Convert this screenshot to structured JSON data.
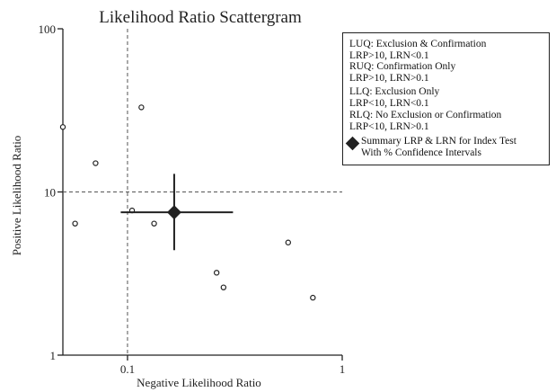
{
  "chart_data": {
    "type": "scatter",
    "title": "Likelihood Ratio Scattergram",
    "xlabel": "Negative Likelihood Ratio",
    "ylabel": "Positive Likelihood Ratio",
    "xscale": "log",
    "yscale": "log",
    "xlim": [
      0.05,
      1
    ],
    "ylim": [
      1,
      100
    ],
    "xticks": [
      0.1,
      1
    ],
    "xtick_labels": [
      "0.1",
      "1"
    ],
    "yticks": [
      1,
      10,
      100
    ],
    "ytick_labels": [
      "1",
      "10",
      "100"
    ],
    "reference_lines": {
      "x": 0.1,
      "y": 10,
      "style": "dashed"
    },
    "grid": false,
    "legend_position": "top-right",
    "studies": [
      {
        "x": 0.05,
        "y": 25
      },
      {
        "x": 0.057,
        "y": 6.4
      },
      {
        "x": 0.071,
        "y": 15
      },
      {
        "x": 0.105,
        "y": 7.7
      },
      {
        "x": 0.116,
        "y": 33
      },
      {
        "x": 0.133,
        "y": 6.4
      },
      {
        "x": 0.26,
        "y": 3.2
      },
      {
        "x": 0.28,
        "y": 2.6
      },
      {
        "x": 0.56,
        "y": 4.9
      },
      {
        "x": 0.73,
        "y": 2.25
      }
    ],
    "summary": {
      "x": 0.165,
      "y": 7.5,
      "x_ci": [
        0.093,
        0.31
      ],
      "y_ci": [
        4.4,
        12.9
      ]
    }
  },
  "legend": {
    "luq": [
      "LUQ: Exclusion & Confirmation",
      "LRP>10, LRN<0.1"
    ],
    "ruq": [
      "RUQ: Confirmation Only",
      "LRP>10, LRN>0.1"
    ],
    "llq": [
      "LLQ: Exclusion Only",
      "LRP<10, LRN<0.1"
    ],
    "rlq": [
      "RLQ: No Exclusion or Confirmation",
      "LRP<10, LRN>0.1"
    ],
    "summary": [
      "Summary LRP & LRN for Index Test",
      "With  % Confidence Intervals"
    ]
  },
  "colors": {
    "ink": "#222222",
    "background": "#ffffff"
  }
}
